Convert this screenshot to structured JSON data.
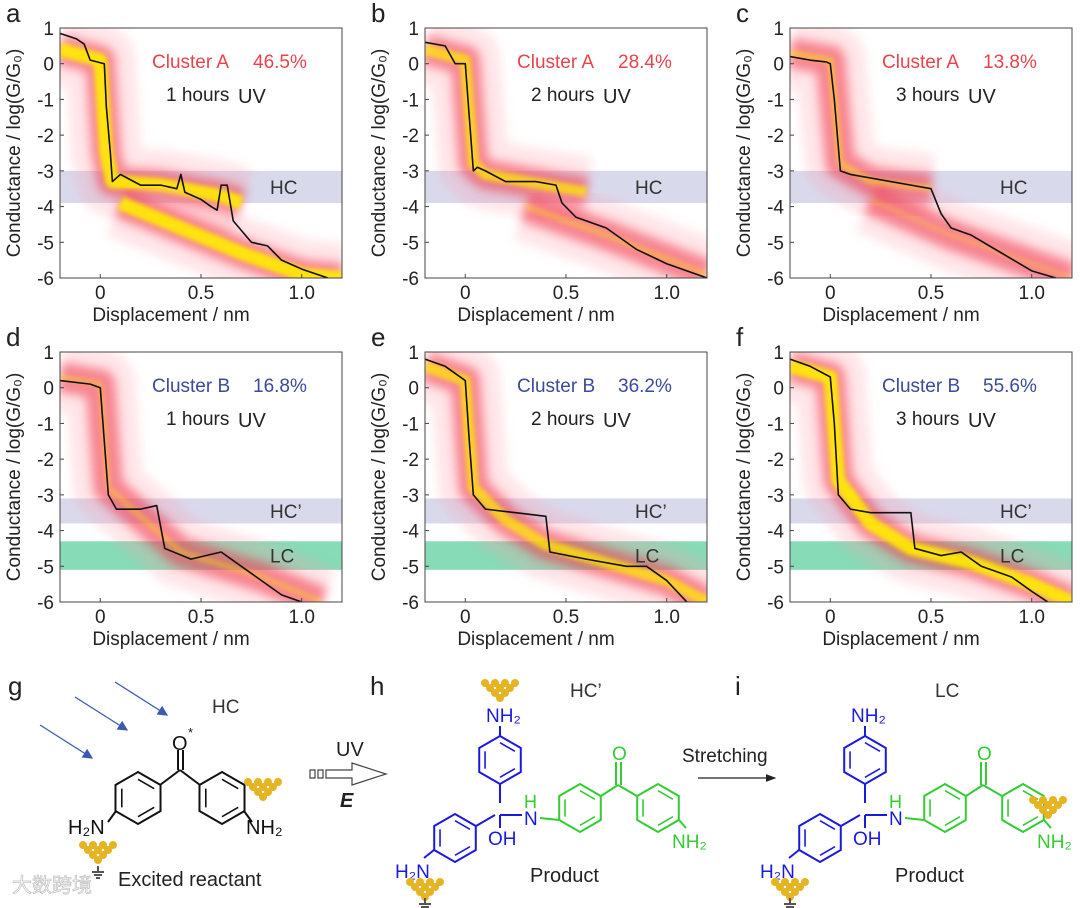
{
  "colors": {
    "cluster_a": "#e8434b",
    "cluster_b": "#3b4a9c",
    "hc_band": "#d9d9ec",
    "lc_band": "#5fcf9f",
    "trace": "#111111",
    "density_low": "#f0344a",
    "density_high": "#ffee00",
    "blue_structure": "#1a1adf",
    "green_structure": "#33cc33",
    "gold": "#e6b422"
  },
  "chart_data": [
    {
      "type": "heatmap",
      "panel": "a",
      "xlabel": "Displacement / nm",
      "ylabel": "Conductance / log(G/G₀)",
      "xlim": [
        -0.2,
        1.2
      ],
      "ylim": [
        -6,
        1
      ],
      "xticks": [
        "0",
        "0.5",
        "1.0"
      ],
      "yticks": [
        "1",
        "0",
        "-1",
        "-2",
        "-3",
        "-4",
        "-5",
        "-6"
      ],
      "cluster": "Cluster A",
      "percent": "46.5%",
      "duration": "1 hours",
      "uv": "UV",
      "bands": [
        {
          "label": "HC",
          "range": [
            -3.9,
            -3.0
          ],
          "kind": "hc"
        }
      ],
      "trace": [
        [
          -0.2,
          0.85
        ],
        [
          -0.12,
          0.7
        ],
        [
          -0.08,
          0.55
        ],
        [
          -0.05,
          0.1
        ],
        [
          0.02,
          0.0
        ],
        [
          0.03,
          -1.2
        ],
        [
          0.05,
          -2.5
        ],
        [
          0.06,
          -3.3
        ],
        [
          0.1,
          -3.1
        ],
        [
          0.2,
          -3.4
        ],
        [
          0.3,
          -3.4
        ],
        [
          0.38,
          -3.5
        ],
        [
          0.4,
          -3.1
        ],
        [
          0.42,
          -3.6
        ],
        [
          0.5,
          -3.8
        ],
        [
          0.55,
          -4.0
        ],
        [
          0.58,
          -4.1
        ],
        [
          0.6,
          -3.4
        ],
        [
          0.63,
          -3.4
        ],
        [
          0.66,
          -4.4
        ],
        [
          0.75,
          -5.0
        ],
        [
          0.83,
          -5.1
        ],
        [
          0.9,
          -5.5
        ],
        [
          1.0,
          -5.75
        ],
        [
          1.13,
          -6.0
        ]
      ],
      "density": [
        {
          "path": [
            [
              -0.2,
              0.4
            ],
            [
              0.0,
              0.1
            ],
            [
              0.03,
              -2.5
            ],
            [
              0.06,
              -3.3
            ],
            [
              0.3,
              -3.4
            ],
            [
              0.6,
              -3.7
            ],
            [
              0.7,
              -3.9
            ]
          ],
          "intensity": 1
        },
        {
          "path": [
            [
              0.1,
              -3.9
            ],
            [
              0.4,
              -4.6
            ],
            [
              0.7,
              -5.3
            ],
            [
              1.0,
              -5.9
            ],
            [
              1.2,
              -6.0
            ]
          ],
          "intensity": 1
        }
      ]
    },
    {
      "type": "heatmap",
      "panel": "b",
      "xlabel": "Displacement / nm",
      "ylabel": "Conductance / log(G/G₀)",
      "xlim": [
        -0.2,
        1.2
      ],
      "ylim": [
        -6,
        1
      ],
      "xticks": [
        "0",
        "0.5",
        "1.0"
      ],
      "yticks": [
        "1",
        "0",
        "-1",
        "-2",
        "-3",
        "-4",
        "-5",
        "-6"
      ],
      "cluster": "Cluster A",
      "percent": "28.4%",
      "duration": "2 hours",
      "uv": "UV",
      "bands": [
        {
          "label": "HC",
          "range": [
            -3.9,
            -3.0
          ],
          "kind": "hc"
        }
      ],
      "trace": [
        [
          -0.2,
          0.6
        ],
        [
          -0.1,
          0.5
        ],
        [
          -0.05,
          0.0
        ],
        [
          0.0,
          0.0
        ],
        [
          0.02,
          -1.5
        ],
        [
          0.04,
          -3.0
        ],
        [
          0.06,
          -2.9
        ],
        [
          0.1,
          -3.0
        ],
        [
          0.2,
          -3.3
        ],
        [
          0.35,
          -3.3
        ],
        [
          0.45,
          -3.4
        ],
        [
          0.48,
          -3.9
        ],
        [
          0.55,
          -4.3
        ],
        [
          0.7,
          -4.6
        ],
        [
          0.85,
          -5.2
        ],
        [
          1.0,
          -5.6
        ],
        [
          1.2,
          -6.0
        ]
      ],
      "density": [
        {
          "path": [
            [
              -0.2,
              0.4
            ],
            [
              0.0,
              0.1
            ],
            [
              0.04,
              -2.8
            ],
            [
              0.1,
              -3.1
            ],
            [
              0.4,
              -3.4
            ],
            [
              0.6,
              -3.6
            ]
          ],
          "intensity": 0.8
        },
        {
          "path": [
            [
              0.3,
              -4.0
            ],
            [
              0.7,
              -4.8
            ],
            [
              1.2,
              -5.9
            ]
          ],
          "intensity": 0.4
        }
      ]
    },
    {
      "type": "heatmap",
      "panel": "c",
      "xlabel": "Displacement / nm",
      "ylabel": "Conductance / log(G/G₀)",
      "xlim": [
        -0.2,
        1.2
      ],
      "ylim": [
        -6,
        1
      ],
      "xticks": [
        "0",
        "0.5",
        "1.0"
      ],
      "yticks": [
        "1",
        "0",
        "-1",
        "-2",
        "-3",
        "-4",
        "-5",
        "-6"
      ],
      "cluster": "Cluster A",
      "percent": "13.8%",
      "duration": "3 hours",
      "uv": "UV",
      "bands": [
        {
          "label": "HC",
          "range": [
            -3.9,
            -3.0
          ],
          "kind": "hc"
        }
      ],
      "trace": [
        [
          -0.2,
          0.2
        ],
        [
          -0.1,
          0.1
        ],
        [
          -0.02,
          0.05
        ],
        [
          0.0,
          0.0
        ],
        [
          0.02,
          -1.0
        ],
        [
          0.05,
          -3.0
        ],
        [
          0.1,
          -3.1
        ],
        [
          0.2,
          -3.2
        ],
        [
          0.3,
          -3.3
        ],
        [
          0.4,
          -3.4
        ],
        [
          0.5,
          -3.5
        ],
        [
          0.55,
          -4.2
        ],
        [
          0.6,
          -4.6
        ],
        [
          0.7,
          -4.8
        ],
        [
          0.85,
          -5.3
        ],
        [
          1.0,
          -5.8
        ],
        [
          1.12,
          -6.0
        ]
      ],
      "density": [
        {
          "path": [
            [
              -0.2,
              0.3
            ],
            [
              0.0,
              0.1
            ],
            [
              0.05,
              -2.8
            ],
            [
              0.2,
              -3.3
            ],
            [
              0.5,
              -3.5
            ]
          ],
          "intensity": 0.5
        },
        {
          "path": [
            [
              0.2,
              -3.8
            ],
            [
              0.6,
              -4.8
            ],
            [
              1.2,
              -6.0
            ]
          ],
          "intensity": 0.3
        }
      ]
    },
    {
      "type": "heatmap",
      "panel": "d",
      "xlabel": "Displacement / nm",
      "ylabel": "Conductance / log(G/G₀)",
      "xlim": [
        -0.2,
        1.2
      ],
      "ylim": [
        -6,
        1
      ],
      "xticks": [
        "0",
        "0.5",
        "1.0"
      ],
      "yticks": [
        "1",
        "0",
        "-1",
        "-2",
        "-3",
        "-4",
        "-5",
        "-6"
      ],
      "cluster": "Cluster B",
      "percent": "16.8%",
      "duration": "1 hours",
      "uv": "UV",
      "bands": [
        {
          "label": "HC’",
          "range": [
            -3.8,
            -3.1
          ],
          "kind": "hc"
        },
        {
          "label": "LC",
          "range": [
            -5.1,
            -4.3
          ],
          "kind": "lc"
        }
      ],
      "trace": [
        [
          -0.2,
          0.2
        ],
        [
          -0.05,
          0.1
        ],
        [
          0.0,
          0.0
        ],
        [
          0.02,
          -1.5
        ],
        [
          0.04,
          -3.0
        ],
        [
          0.08,
          -3.4
        ],
        [
          0.2,
          -3.4
        ],
        [
          0.28,
          -3.3
        ],
        [
          0.32,
          -4.5
        ],
        [
          0.45,
          -4.8
        ],
        [
          0.6,
          -4.6
        ],
        [
          0.75,
          -5.2
        ],
        [
          0.9,
          -5.8
        ],
        [
          1.0,
          -6.0
        ]
      ],
      "density": [
        {
          "path": [
            [
              -0.2,
              0.3
            ],
            [
              0.0,
              0.1
            ],
            [
              0.04,
              -2.8
            ],
            [
              0.2,
              -3.6
            ],
            [
              0.4,
              -4.6
            ],
            [
              0.8,
              -5.3
            ],
            [
              1.1,
              -6.0
            ]
          ],
          "intensity": 0.4
        }
      ]
    },
    {
      "type": "heatmap",
      "panel": "e",
      "xlabel": "Displacement / nm",
      "ylabel": "Conductance / log(G/G₀)",
      "xlim": [
        -0.2,
        1.2
      ],
      "ylim": [
        -6,
        1
      ],
      "xticks": [
        "0",
        "0.5",
        "1.0"
      ],
      "yticks": [
        "1",
        "0",
        "-1",
        "-2",
        "-3",
        "-4",
        "-5",
        "-6"
      ],
      "cluster": "Cluster B",
      "percent": "36.2%",
      "duration": "2 hours",
      "uv": "UV",
      "bands": [
        {
          "label": "HC’",
          "range": [
            -3.8,
            -3.1
          ],
          "kind": "hc"
        },
        {
          "label": "LC",
          "range": [
            -5.1,
            -4.3
          ],
          "kind": "lc"
        }
      ],
      "trace": [
        [
          -0.2,
          0.8
        ],
        [
          -0.1,
          0.6
        ],
        [
          0.0,
          0.2
        ],
        [
          0.02,
          -1.5
        ],
        [
          0.04,
          -3.0
        ],
        [
          0.1,
          -3.4
        ],
        [
          0.25,
          -3.5
        ],
        [
          0.4,
          -3.6
        ],
        [
          0.42,
          -4.6
        ],
        [
          0.6,
          -4.8
        ],
        [
          0.8,
          -5.0
        ],
        [
          0.9,
          -5.0
        ],
        [
          1.0,
          -5.4
        ],
        [
          1.1,
          -6.0
        ]
      ],
      "density": [
        {
          "path": [
            [
              -0.2,
              0.6
            ],
            [
              0.0,
              0.2
            ],
            [
              0.04,
              -2.8
            ],
            [
              0.2,
              -3.7
            ],
            [
              0.4,
              -4.4
            ],
            [
              0.7,
              -4.9
            ],
            [
              1.0,
              -5.4
            ],
            [
              1.2,
              -6.0
            ]
          ],
          "intensity": 0.8
        }
      ]
    },
    {
      "type": "heatmap",
      "panel": "f",
      "xlabel": "Displacement / nm",
      "ylabel": "Conductance / log(G/G₀)",
      "xlim": [
        -0.2,
        1.2
      ],
      "ylim": [
        -6,
        1
      ],
      "xticks": [
        "0",
        "0.5",
        "1.0"
      ],
      "yticks": [
        "1",
        "0",
        "-1",
        "-2",
        "-3",
        "-4",
        "-5",
        "-6"
      ],
      "cluster": "Cluster B",
      "percent": "55.6%",
      "duration": "3 hours",
      "uv": "UV",
      "bands": [
        {
          "label": "HC’",
          "range": [
            -3.8,
            -3.1
          ],
          "kind": "hc"
        },
        {
          "label": "LC",
          "range": [
            -5.1,
            -4.3
          ],
          "kind": "lc"
        }
      ],
      "trace": [
        [
          -0.2,
          0.8
        ],
        [
          -0.1,
          0.6
        ],
        [
          0.0,
          0.3
        ],
        [
          0.02,
          -1.0
        ],
        [
          0.04,
          -3.0
        ],
        [
          0.1,
          -3.4
        ],
        [
          0.2,
          -3.5
        ],
        [
          0.4,
          -3.5
        ],
        [
          0.42,
          -4.5
        ],
        [
          0.55,
          -4.7
        ],
        [
          0.65,
          -4.6
        ],
        [
          0.75,
          -5.0
        ],
        [
          0.9,
          -5.3
        ],
        [
          1.0,
          -5.7
        ],
        [
          1.08,
          -6.0
        ]
      ],
      "density": [
        {
          "path": [
            [
              -0.2,
              0.6
            ],
            [
              0.0,
              0.3
            ],
            [
              0.04,
              -2.6
            ],
            [
              0.2,
              -3.8
            ],
            [
              0.4,
              -4.5
            ],
            [
              0.7,
              -4.9
            ],
            [
              1.0,
              -5.5
            ],
            [
              1.2,
              -6.0
            ]
          ],
          "intensity": 1
        }
      ]
    }
  ],
  "schemes": {
    "g": {
      "letter": "g",
      "state": "HC",
      "caption": "Excited reactant",
      "oxygen": "O",
      "excited_mark": "*",
      "left_amine": "H₂N",
      "right_amine": "NH₂"
    },
    "uv_arrow": {
      "label": "UV",
      "field": "E"
    },
    "h": {
      "letter": "h",
      "state": "HC’",
      "caption": "Product",
      "top_amine": "NH₂",
      "left_amine": "H₂N",
      "hydroxyl": "OH",
      "nh_h": "H",
      "nh_n": "N",
      "carbonyl_o": "O",
      "right_amine": "NH₂"
    },
    "stretch_arrow": {
      "label": "Stretching"
    },
    "i": {
      "letter": "i",
      "state": "LC",
      "caption": "Product",
      "top_amine": "NH₂",
      "left_amine": "H₂N",
      "hydroxyl": "OH",
      "nh_h": "H",
      "nh_n": "N",
      "carbonyl_o": "O",
      "right_amine": "NH₂"
    }
  },
  "watermark": "大数跨境"
}
